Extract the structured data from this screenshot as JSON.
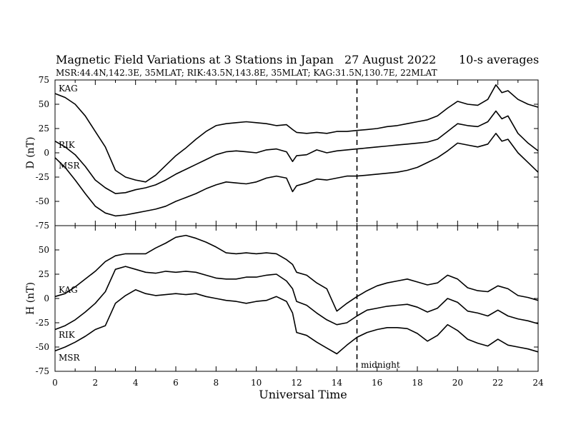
{
  "header": {
    "title": "Magnetic Field Variations at 3 Stations in Japan",
    "date": "27  August  2022",
    "averaging": "10-s averages",
    "stations_line": "MSR:44.4N,142.3E, 35MLAT;   RIK:43.5N,143.8E, 35MLAT;   KAG:31.5N,130.7E, 22MLAT"
  },
  "chart_data": [
    {
      "type": "line",
      "panel": "D",
      "ylabel": "D (nT)",
      "ylim": [
        -75,
        75
      ],
      "yticks": [
        75,
        50,
        25,
        0,
        -25,
        -50,
        -75
      ],
      "xlim": [
        0,
        24
      ],
      "series": [
        {
          "name": "KAG",
          "x": [
            0,
            0.5,
            1,
            1.5,
            2,
            2.5,
            3,
            3.5,
            4,
            4.5,
            5,
            5.5,
            6,
            6.5,
            7,
            7.5,
            8,
            8.5,
            9,
            9.5,
            10,
            10.5,
            11,
            11.5,
            11.8,
            12,
            12.5,
            13,
            13.5,
            14,
            14.5,
            15,
            15.5,
            16,
            16.5,
            17,
            17.5,
            18,
            18.5,
            19,
            19.5,
            20,
            20.5,
            21,
            21.5,
            21.9,
            22.2,
            22.5,
            23,
            23.5,
            24
          ],
          "y": [
            61,
            57,
            50,
            38,
            22,
            6,
            -18,
            -25,
            -28,
            -30,
            -23,
            -13,
            -3,
            5,
            14,
            22,
            28,
            30,
            31,
            32,
            31,
            30,
            28,
            29,
            24,
            21,
            20,
            21,
            20,
            22,
            22,
            23,
            24,
            25,
            27,
            28,
            30,
            32,
            34,
            38,
            46,
            53,
            50,
            49,
            55,
            70,
            62,
            64,
            55,
            50,
            47
          ]
        },
        {
          "name": "RIK",
          "x": [
            0,
            0.5,
            1,
            1.5,
            2,
            2.5,
            3,
            3.5,
            4,
            4.5,
            5,
            5.5,
            6,
            6.5,
            7,
            7.5,
            8,
            8.5,
            9,
            9.5,
            10,
            10.5,
            11,
            11.5,
            11.8,
            12,
            12.5,
            13,
            13.5,
            14,
            14.5,
            15,
            15.5,
            16,
            16.5,
            17,
            17.5,
            18,
            18.5,
            19,
            19.5,
            20,
            20.5,
            21,
            21.5,
            21.9,
            22.2,
            22.5,
            23,
            23.5,
            24
          ],
          "y": [
            12,
            6,
            -2,
            -14,
            -28,
            -36,
            -42,
            -41,
            -38,
            -36,
            -33,
            -28,
            -22,
            -17,
            -12,
            -7,
            -2,
            1,
            2,
            1,
            0,
            3,
            4,
            1,
            -9,
            -3,
            -2,
            3,
            0,
            2,
            3,
            4,
            5,
            6,
            7,
            8,
            9,
            10,
            11,
            14,
            22,
            30,
            28,
            27,
            32,
            43,
            35,
            38,
            20,
            10,
            2
          ]
        },
        {
          "name": "MSR",
          "x": [
            0,
            0.5,
            1,
            1.5,
            2,
            2.5,
            3,
            3.5,
            4,
            4.5,
            5,
            5.5,
            6,
            6.5,
            7,
            7.5,
            8,
            8.5,
            9,
            9.5,
            10,
            10.5,
            11,
            11.5,
            11.8,
            12,
            12.5,
            13,
            13.5,
            14,
            14.5,
            15,
            15.5,
            16,
            16.5,
            17,
            17.5,
            18,
            18.5,
            19,
            19.5,
            20,
            20.5,
            21,
            21.5,
            21.9,
            22.2,
            22.5,
            23,
            23.5,
            24
          ],
          "y": [
            -5,
            -15,
            -28,
            -42,
            -55,
            -62,
            -65,
            -64,
            -62,
            -60,
            -58,
            -55,
            -50,
            -46,
            -42,
            -37,
            -33,
            -30,
            -31,
            -32,
            -30,
            -26,
            -24,
            -26,
            -40,
            -34,
            -31,
            -27,
            -28,
            -26,
            -24,
            -24,
            -23,
            -22,
            -21,
            -20,
            -18,
            -15,
            -10,
            -5,
            2,
            10,
            8,
            6,
            9,
            20,
            12,
            14,
            0,
            -10,
            -20
          ]
        }
      ]
    },
    {
      "type": "line",
      "panel": "H",
      "ylabel": "H (nT)",
      "ylim": [
        -75,
        75
      ],
      "yticks": [
        75,
        50,
        25,
        0,
        -25,
        -50,
        -75
      ],
      "xlabel": "Universal Time",
      "xlim": [
        0,
        24
      ],
      "xticks": [
        0,
        2,
        4,
        6,
        8,
        10,
        12,
        14,
        16,
        18,
        20,
        22,
        24
      ],
      "series": [
        {
          "name": "KAG",
          "x": [
            0,
            0.5,
            1,
            1.5,
            2,
            2.5,
            3,
            3.5,
            4,
            4.5,
            5,
            5.5,
            6,
            6.5,
            7,
            7.5,
            8,
            8.5,
            9,
            9.5,
            10,
            10.5,
            11,
            11.5,
            11.8,
            12,
            12.5,
            13,
            13.5,
            14,
            14.5,
            15,
            15.5,
            16,
            16.5,
            17,
            17.5,
            18,
            18.5,
            19,
            19.5,
            20,
            20.5,
            21,
            21.5,
            22,
            22.5,
            23,
            23.5,
            24
          ],
          "y": [
            2,
            5,
            12,
            20,
            28,
            38,
            44,
            46,
            46,
            46,
            52,
            57,
            63,
            65,
            62,
            58,
            53,
            47,
            46,
            47,
            46,
            47,
            46,
            40,
            35,
            27,
            24,
            16,
            10,
            -13,
            -5,
            2,
            8,
            13,
            16,
            18,
            20,
            17,
            14,
            16,
            24,
            20,
            11,
            8,
            7,
            13,
            10,
            3,
            1,
            -2
          ]
        },
        {
          "name": "RIK",
          "x": [
            0,
            0.5,
            1,
            1.5,
            2,
            2.5,
            3,
            3.5,
            4,
            4.5,
            5,
            5.5,
            6,
            6.5,
            7,
            7.5,
            8,
            8.5,
            9,
            9.5,
            10,
            10.5,
            11,
            11.5,
            11.8,
            12,
            12.5,
            13,
            13.5,
            14,
            14.5,
            15,
            15.5,
            16,
            16.5,
            17,
            17.5,
            18,
            18.5,
            19,
            19.5,
            20,
            20.5,
            21,
            21.5,
            22,
            22.5,
            23,
            23.5,
            24
          ],
          "y": [
            -32,
            -28,
            -22,
            -14,
            -5,
            7,
            30,
            33,
            30,
            27,
            26,
            28,
            27,
            28,
            27,
            24,
            21,
            20,
            20,
            22,
            22,
            24,
            25,
            18,
            10,
            -3,
            -7,
            -15,
            -22,
            -27,
            -25,
            -18,
            -12,
            -10,
            -8,
            -7,
            -6,
            -9,
            -14,
            -10,
            0,
            -4,
            -13,
            -15,
            -18,
            -12,
            -18,
            -21,
            -23,
            -26
          ]
        },
        {
          "name": "MSR",
          "x": [
            0,
            0.5,
            1,
            1.5,
            2,
            2.5,
            3,
            3.5,
            4,
            4.5,
            5,
            5.5,
            6,
            6.5,
            7,
            7.5,
            8,
            8.5,
            9,
            9.5,
            10,
            10.5,
            11,
            11.5,
            11.8,
            12,
            12.5,
            13,
            13.5,
            14,
            14.5,
            15,
            15.5,
            16,
            16.5,
            17,
            17.5,
            18,
            18.5,
            19,
            19.5,
            20,
            20.5,
            21,
            21.5,
            22,
            22.5,
            23,
            23.5,
            24
          ],
          "y": [
            -54,
            -50,
            -45,
            -39,
            -32,
            -28,
            -5,
            3,
            9,
            5,
            3,
            4,
            5,
            4,
            5,
            2,
            0,
            -2,
            -3,
            -5,
            -3,
            -2,
            2,
            -3,
            -15,
            -35,
            -38,
            -45,
            -51,
            -57,
            -48,
            -40,
            -35,
            -32,
            -30,
            -30,
            -31,
            -36,
            -44,
            -38,
            -27,
            -33,
            -42,
            -46,
            -49,
            -42,
            -48,
            -50,
            -52,
            -55
          ]
        }
      ]
    }
  ],
  "annotations": {
    "midnight_label": "midnight",
    "midnight_ut": 15
  }
}
